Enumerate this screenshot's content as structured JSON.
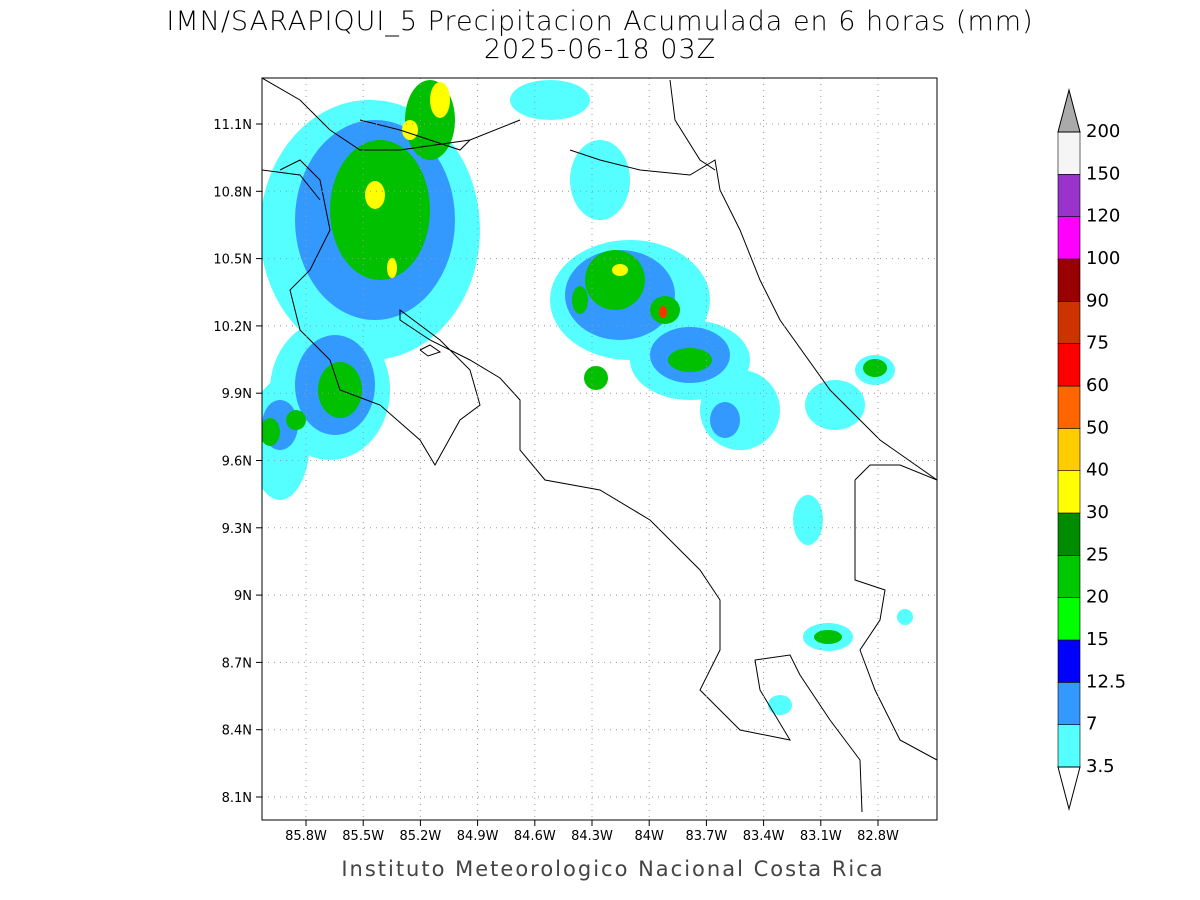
{
  "title": "IMN/SARAPIQUI_5 Precipitacion Acumulada en 6 horas (mm)",
  "subtitle": "2025-06-18 03Z",
  "map": {
    "lon_ticks": [
      "85.8W",
      "85.5W",
      "85.2W",
      "84.9W",
      "84.6W",
      "84.3W",
      "84W",
      "83.7W",
      "83.4W",
      "83.1W",
      "82.8W"
    ],
    "lat_ticks": [
      "11.1N",
      "10.8N",
      "10.5N",
      "10.2N",
      "9.9N",
      "9.6N",
      "9.3N",
      "9N",
      "8.7N",
      "8.4N",
      "8.1N"
    ]
  },
  "colorbar": {
    "levels": [
      3.5,
      7,
      12.5,
      15,
      20,
      25,
      30,
      40,
      50,
      60,
      75,
      90,
      100,
      120,
      150,
      200
    ],
    "colors": [
      "#55ffff",
      "#3399ff",
      "#0000ff",
      "#00ff00",
      "#00c800",
      "#008c00",
      "#ffff00",
      "#ffcc00",
      "#ff6600",
      "#ff0000",
      "#cc3300",
      "#990000",
      "#ff00ff",
      "#9933cc",
      "#f5f5f5"
    ],
    "under_color": "#ffffff",
    "over_color": "#aaaaaa"
  },
  "footer": "Instituto Meteorologico Nacional Costa Rica"
}
